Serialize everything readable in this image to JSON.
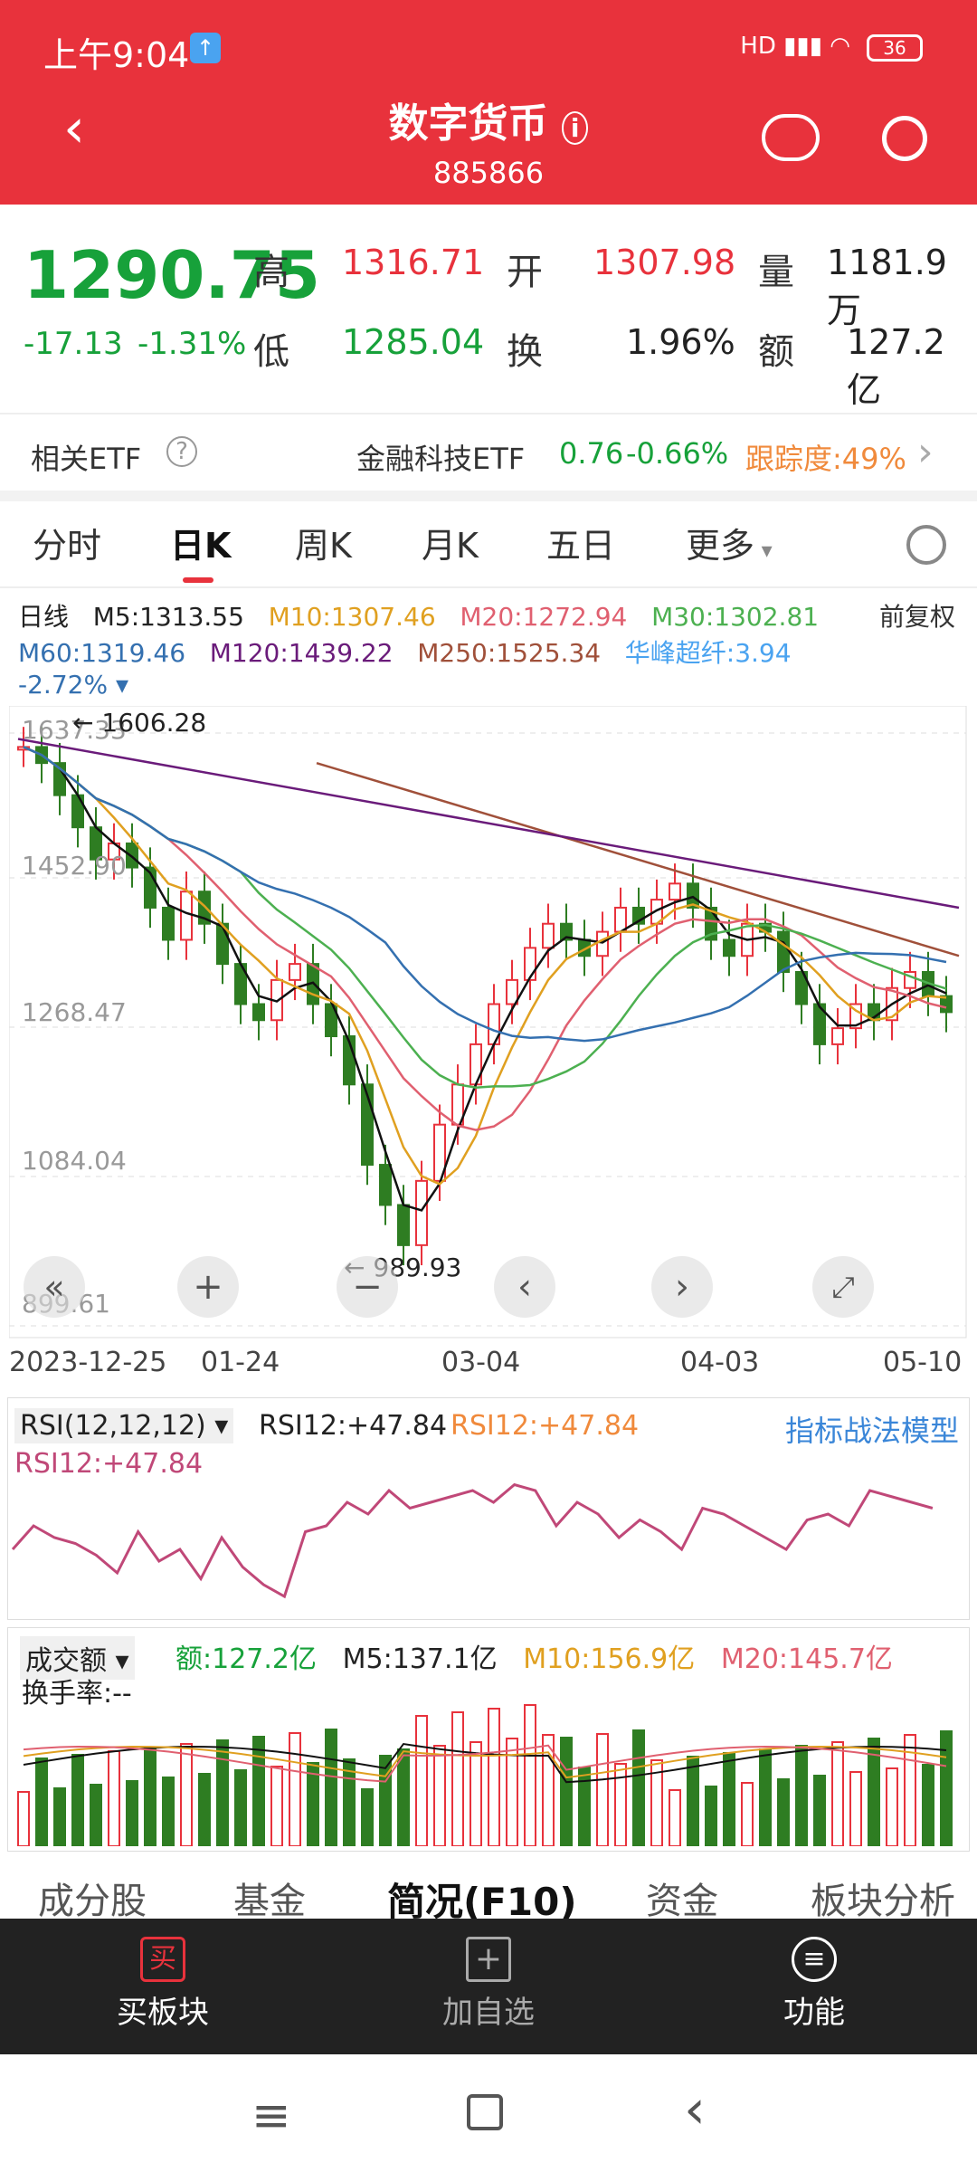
{
  "status": {
    "time": "上午9:04",
    "battery": "36"
  },
  "header": {
    "title": "数字货币",
    "code": "885866"
  },
  "quote": {
    "price": "1290.75",
    "change": "-17.13",
    "pct": "-1.31%",
    "high_lbl": "高",
    "high": "1316.71",
    "open_lbl": "开",
    "open": "1307.98",
    "vol_lbl": "量",
    "vol": "1181.9万",
    "low_lbl": "低",
    "low": "1285.04",
    "turn_lbl": "换",
    "turn": "1.96%",
    "amt_lbl": "额",
    "amt": "127.2亿"
  },
  "etf": {
    "label": "相关ETF",
    "name": "金融科技ETF",
    "price": "0.76",
    "pct": "-0.66%",
    "track": "跟踪度:49%"
  },
  "tabs": [
    "分时",
    "日K",
    "周K",
    "月K",
    "五日",
    "更多"
  ],
  "ma": {
    "label": "日线",
    "m5": "M5:1313.55",
    "m10": "M10:1307.46",
    "m20": "M20:1272.94",
    "m30": "M30:1302.81",
    "m60": "M60:1319.46",
    "m120": "M120:1439.22",
    "m250": "M250:1525.34",
    "hf": "华峰超纤:3.94",
    "pct": "-2.72%",
    "adj": "前复权"
  },
  "kline": {
    "axis": [
      "1637.33",
      "1452.90",
      "1268.47",
      "1084.04",
      "899.61"
    ],
    "hi": "1606.28",
    "lo": "989.93",
    "dates": [
      "2023-12-25",
      "01-24",
      "03-04",
      "04-03",
      "05-10"
    ]
  },
  "rsi": {
    "sel": "RSI(12,12,12)",
    "v1": "RSI12:+47.84",
    "v2": "RSI12:+47.84",
    "v3": "RSI12:+47.84",
    "model": "指标战法模型"
  },
  "vol": {
    "sel": "成交额",
    "amt": "额:127.2亿",
    "m5": "M5:137.1亿",
    "m10": "M10:156.9亿",
    "m20": "M20:145.7亿",
    "turn": "换手率:--"
  },
  "subtabs": [
    "成分股",
    "基金",
    "简况(F10)",
    "资金",
    "板块分析"
  ],
  "bottom": {
    "buy": "买板块",
    "add": "加自选",
    "func": "功能"
  },
  "chart_data": {
    "type": "candlestick",
    "title": "数字货币 日K",
    "ylim": [
      899.61,
      1637.33
    ],
    "x_ticks": [
      "2023-12-25",
      "01-24",
      "03-04",
      "04-03",
      "05-10"
    ],
    "max": 1606.28,
    "min": 989.93
  }
}
